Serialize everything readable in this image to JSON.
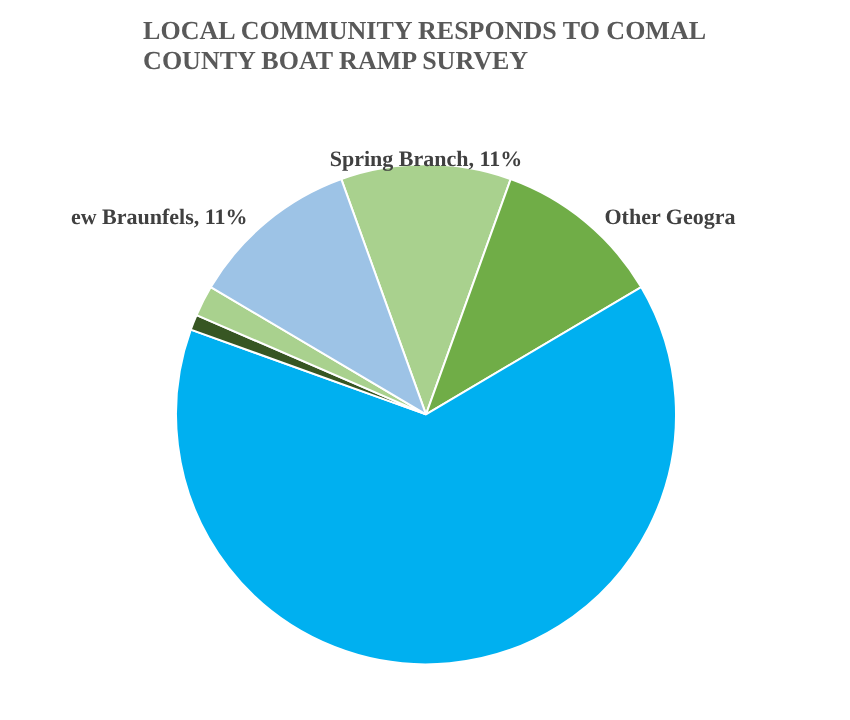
{
  "chart_data": {
    "type": "pie",
    "title": "LOCAL COMMUNITY RESPONDS TO COMAL COUNTY BOAT RAMP SURVEY",
    "categories": [
      "Spring Branch",
      "Other Geogra",
      null,
      null,
      null,
      "ew Braunfels"
    ],
    "values": [
      11,
      11,
      64,
      1,
      2,
      11
    ],
    "value_labels": [
      "11%",
      null,
      null,
      null,
      null,
      "11%"
    ],
    "colors": [
      "#a9d18e",
      "#70ad47",
      "#00b0f0",
      "#375623",
      "#a9d18e",
      "#9dc3e6"
    ],
    "legend": false
  }
}
